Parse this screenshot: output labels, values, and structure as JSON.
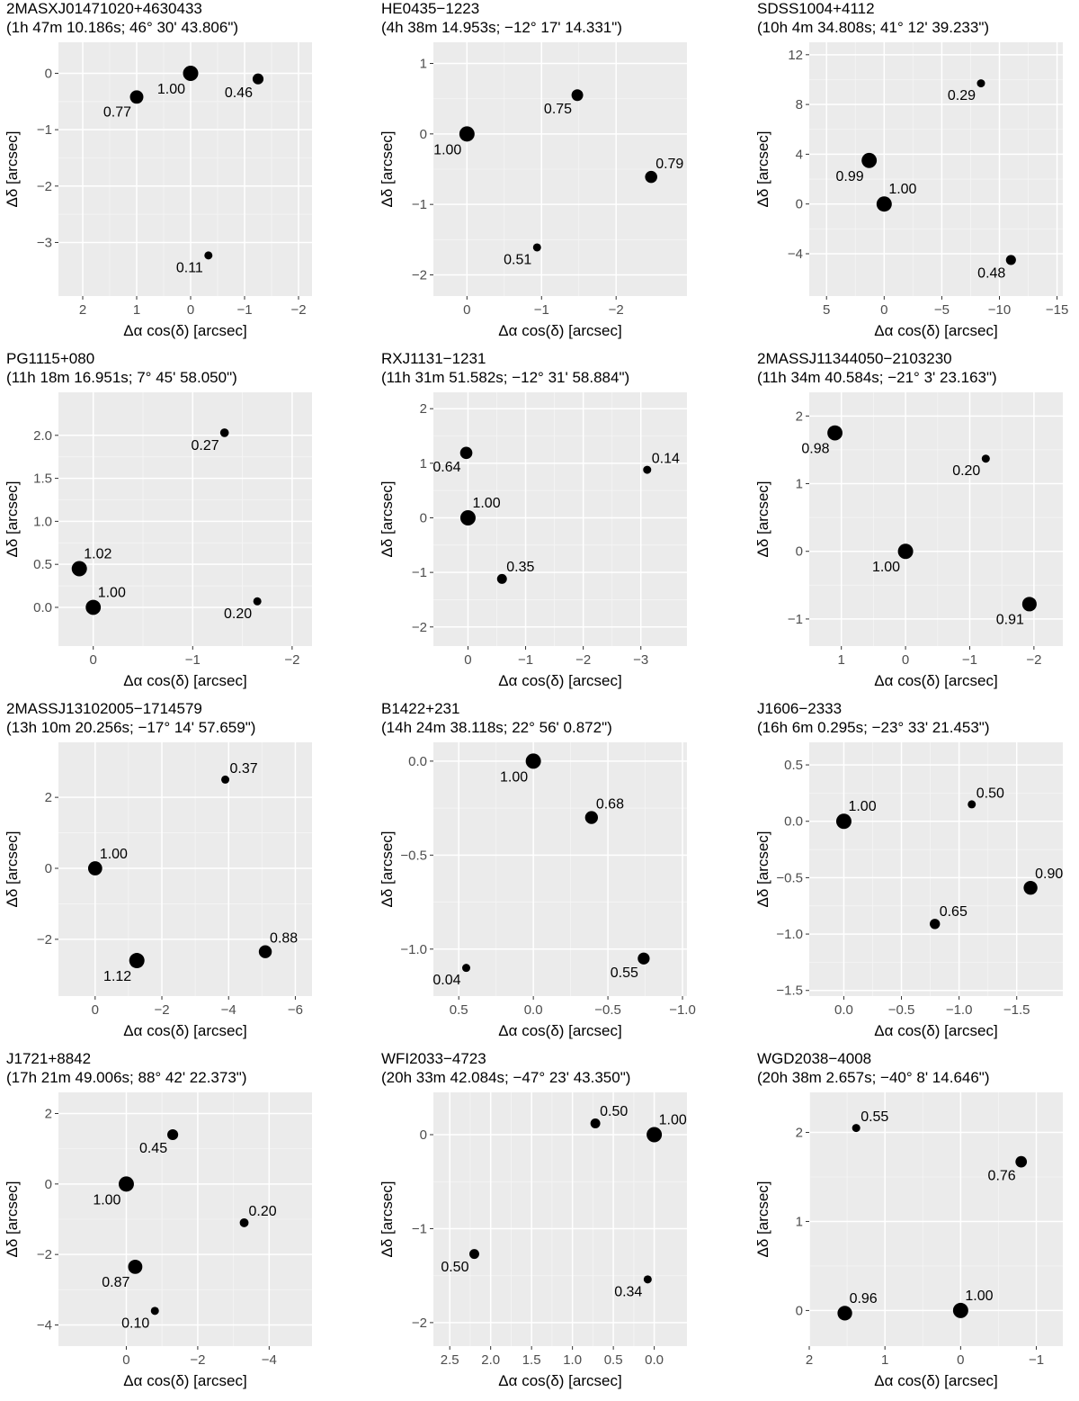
{
  "chart_data": [
    {
      "type": "scatter",
      "name": "2MASXJ01471020+4630433",
      "coords": "(1h 47m 10.186s; 46° 30' 43.806\")",
      "xlabel": "Δα cos(δ) [arcsec]",
      "ylabel": "Δδ [arcsec]",
      "xlim": [
        2.45,
        -2.25
      ],
      "ylim": [
        -3.95,
        0.55
      ],
      "xticks": [
        2,
        1,
        0,
        -1,
        -2
      ],
      "xtick_labels": [
        "2",
        "1",
        "0",
        "−1",
        "−2"
      ],
      "yticks": [
        0,
        -1,
        -2,
        -3
      ],
      "ytick_labels": [
        "0",
        "−1",
        "−2",
        "−3"
      ],
      "points": [
        {
          "x": 0,
          "y": 0,
          "label": "1.00",
          "lpos": "bl"
        },
        {
          "x": 1.0,
          "y": -0.42,
          "label": "0.77",
          "lpos": "bl"
        },
        {
          "x": -1.25,
          "y": -0.1,
          "label": "0.46",
          "lpos": "bl"
        },
        {
          "x": -0.33,
          "y": -3.23,
          "label": "0.11",
          "lpos": "bl"
        }
      ]
    },
    {
      "type": "scatter",
      "name": "HE0435−1223",
      "coords": "(4h 38m 14.953s; −12° 17' 14.331\")",
      "xlabel": "Δα cos(δ) [arcsec]",
      "ylabel": "Δδ [arcsec]",
      "xlim": [
        0.45,
        -2.95
      ],
      "ylim": [
        -2.3,
        1.3
      ],
      "xticks": [
        0,
        -1,
        -2
      ],
      "xtick_labels": [
        "0",
        "−1",
        "−2"
      ],
      "yticks": [
        1,
        0,
        -1,
        -2
      ],
      "ytick_labels": [
        "1",
        "0",
        "−1",
        "−2"
      ],
      "points": [
        {
          "x": 0,
          "y": 0,
          "label": "1.00",
          "lpos": "bl"
        },
        {
          "x": -1.48,
          "y": 0.55,
          "label": "0.75",
          "lpos": "bl"
        },
        {
          "x": -2.47,
          "y": -0.61,
          "label": "0.79",
          "lpos": "tr"
        },
        {
          "x": -0.94,
          "y": -1.61,
          "label": "0.51",
          "lpos": "bl"
        }
      ]
    },
    {
      "type": "scatter",
      "name": "SDSS1004+4112",
      "coords": "(10h 4m 34.808s; 41° 12' 39.233\")",
      "xlabel": "Δα cos(δ) [arcsec]",
      "ylabel": "Δδ [arcsec]",
      "xlim": [
        6.5,
        -15.5
      ],
      "ylim": [
        -7.4,
        13.0
      ],
      "xticks": [
        5,
        0,
        -5,
        -10,
        -15
      ],
      "xtick_labels": [
        "5",
        "0",
        "−5",
        "−10",
        "−15"
      ],
      "yticks": [
        12,
        8,
        4,
        0,
        -4
      ],
      "ytick_labels": [
        "12",
        "8",
        "4",
        "0",
        "−4"
      ],
      "points": [
        {
          "x": 0,
          "y": 0,
          "label": "1.00",
          "lpos": "tr"
        },
        {
          "x": 1.3,
          "y": 3.5,
          "label": "0.99",
          "lpos": "bl"
        },
        {
          "x": -8.4,
          "y": 9.7,
          "label": "0.29",
          "lpos": "bl"
        },
        {
          "x": -11.0,
          "y": -4.5,
          "label": "0.48",
          "lpos": "bl"
        }
      ]
    },
    {
      "type": "scatter",
      "name": "PG1115+080",
      "coords": "(11h 18m 16.951s; 7° 45' 58.050\")",
      "xlabel": "Δα cos(δ) [arcsec]",
      "ylabel": "Δδ [arcsec]",
      "xlim": [
        0.35,
        -2.2
      ],
      "ylim": [
        -0.45,
        2.5
      ],
      "xticks": [
        0,
        -1,
        -2
      ],
      "xtick_labels": [
        "0",
        "−1",
        "−2"
      ],
      "yticks": [
        2.0,
        1.5,
        1.0,
        0.5,
        0.0
      ],
      "ytick_labels": [
        "2.0",
        "1.5",
        "1.0",
        "0.5",
        "0.0"
      ],
      "points": [
        {
          "x": 0,
          "y": 0,
          "label": "1.00",
          "lpos": "tr"
        },
        {
          "x": 0.14,
          "y": 0.45,
          "label": "1.02",
          "lpos": "tr"
        },
        {
          "x": -1.32,
          "y": 2.03,
          "label": "0.27",
          "lpos": "bl"
        },
        {
          "x": -1.65,
          "y": 0.07,
          "label": "0.20",
          "lpos": "bl"
        }
      ]
    },
    {
      "type": "scatter",
      "name": "RXJ1131−1231",
      "coords": "(11h 31m 51.582s; −12° 31' 58.884\")",
      "xlabel": "Δα cos(δ) [arcsec]",
      "ylabel": "Δδ [arcsec]",
      "xlim": [
        0.6,
        -3.8
      ],
      "ylim": [
        -2.35,
        2.3
      ],
      "xticks": [
        0,
        -1,
        -2,
        -3
      ],
      "xtick_labels": [
        "0",
        "−1",
        "−2",
        "−3"
      ],
      "yticks": [
        2,
        1,
        0,
        -1,
        -2
      ],
      "ytick_labels": [
        "2",
        "1",
        "0",
        "−1",
        "−2"
      ],
      "points": [
        {
          "x": 0,
          "y": 0,
          "label": "1.00",
          "lpos": "tr"
        },
        {
          "x": 0.03,
          "y": 1.19,
          "label": "0.64",
          "lpos": "bl"
        },
        {
          "x": -0.59,
          "y": -1.12,
          "label": "0.35",
          "lpos": "tr"
        },
        {
          "x": -3.11,
          "y": 0.88,
          "label": "0.14",
          "lpos": "tr"
        }
      ]
    },
    {
      "type": "scatter",
      "name": "2MASSJ11344050−2103230",
      "coords": "(11h 34m 40.584s; −21° 3' 23.163\")",
      "xlabel": "Δα cos(δ) [arcsec]",
      "ylabel": "Δδ [arcsec]",
      "xlim": [
        1.5,
        -2.45
      ],
      "ylim": [
        -1.4,
        2.35
      ],
      "xticks": [
        1,
        0,
        -1,
        -2
      ],
      "xtick_labels": [
        "1",
        "0",
        "−1",
        "−2"
      ],
      "yticks": [
        2,
        1,
        0,
        -1
      ],
      "ytick_labels": [
        "2",
        "1",
        "0",
        "−1"
      ],
      "points": [
        {
          "x": 0,
          "y": 0,
          "label": "1.00",
          "lpos": "bl"
        },
        {
          "x": 1.1,
          "y": 1.75,
          "label": "0.98",
          "lpos": "bl"
        },
        {
          "x": -1.25,
          "y": 1.37,
          "label": "0.20",
          "lpos": "bl"
        },
        {
          "x": -1.93,
          "y": -0.78,
          "label": "0.91",
          "lpos": "bl"
        }
      ]
    },
    {
      "type": "scatter",
      "name": "2MASSJ13102005−1714579",
      "coords": "(13h 10m 20.256s; −17° 14' 57.659\")",
      "xlabel": "Δα cos(δ) [arcsec]",
      "ylabel": "Δδ [arcsec]",
      "xlim": [
        1.1,
        -6.5
      ],
      "ylim": [
        -3.6,
        3.55
      ],
      "xticks": [
        0,
        -2,
        -4,
        -6
      ],
      "xtick_labels": [
        "0",
        "−2",
        "−4",
        "−6"
      ],
      "yticks": [
        2,
        0,
        -2
      ],
      "ytick_labels": [
        "2",
        "0",
        "−2"
      ],
      "points": [
        {
          "x": 0,
          "y": 0,
          "label": "1.00",
          "lpos": "tr"
        },
        {
          "x": -1.25,
          "y": -2.6,
          "label": "1.12",
          "lpos": "bl"
        },
        {
          "x": -3.9,
          "y": 2.5,
          "label": "0.37",
          "lpos": "tr"
        },
        {
          "x": -5.1,
          "y": -2.35,
          "label": "0.88",
          "lpos": "tr"
        }
      ]
    },
    {
      "type": "scatter",
      "name": "B1422+231",
      "coords": "(14h 24m 38.118s; 22° 56' 0.872\")",
      "xlabel": "Δα cos(δ) [arcsec]",
      "ylabel": "Δδ [arcsec]",
      "xlim": [
        0.67,
        -1.03
      ],
      "ylim": [
        -1.25,
        0.1
      ],
      "xticks": [
        0.5,
        0.0,
        -0.5,
        -1.0
      ],
      "xtick_labels": [
        "0.5",
        "0.0",
        "−0.5",
        "−1.0"
      ],
      "yticks": [
        0.0,
        -0.5,
        -1.0
      ],
      "ytick_labels": [
        "0.0",
        "−0.5",
        "−1.0"
      ],
      "points": [
        {
          "x": 0,
          "y": 0,
          "label": "1.00",
          "lpos": "bl"
        },
        {
          "x": -0.39,
          "y": -0.3,
          "label": "0.68",
          "lpos": "tr"
        },
        {
          "x": 0.45,
          "y": -1.1,
          "label": "0.04",
          "lpos": "bl"
        },
        {
          "x": -0.74,
          "y": -1.05,
          "label": "0.55",
          "lpos": "bl"
        }
      ]
    },
    {
      "type": "scatter",
      "name": "J1606−2333",
      "coords": "(16h 6m 0.295s; −23° 33' 21.453\")",
      "xlabel": "Δα cos(δ) [arcsec]",
      "ylabel": "Δδ [arcsec]",
      "xlim": [
        0.3,
        -1.9
      ],
      "ylim": [
        -1.55,
        0.7
      ],
      "xticks": [
        0.0,
        -0.5,
        -1.0,
        -1.5
      ],
      "xtick_labels": [
        "0.0",
        "−0.5",
        "−1.0",
        "−1.5"
      ],
      "yticks": [
        0.5,
        0.0,
        -0.5,
        -1.0,
        -1.5
      ],
      "ytick_labels": [
        "0.5",
        "0.0",
        "−0.5",
        "−1.0",
        "−1.5"
      ],
      "points": [
        {
          "x": 0,
          "y": 0,
          "label": "1.00",
          "lpos": "tr"
        },
        {
          "x": -1.11,
          "y": 0.15,
          "label": "0.50",
          "lpos": "tr"
        },
        {
          "x": -1.62,
          "y": -0.59,
          "label": "0.90",
          "lpos": "tr"
        },
        {
          "x": -0.79,
          "y": -0.91,
          "label": "0.65",
          "lpos": "tr"
        }
      ]
    },
    {
      "type": "scatter",
      "name": "J1721+8842",
      "coords": "(17h 21m 49.006s; 88° 42' 22.373\")",
      "xlabel": "Δα cos(δ) [arcsec]",
      "ylabel": "Δδ [arcsec]",
      "xlim": [
        1.9,
        -5.2
      ],
      "ylim": [
        -4.6,
        2.6
      ],
      "xticks": [
        0,
        -2,
        -4
      ],
      "xtick_labels": [
        "0",
        "−2",
        "−4"
      ],
      "yticks": [
        2,
        0,
        -2,
        -4
      ],
      "ytick_labels": [
        "2",
        "0",
        "−2",
        "−4"
      ],
      "points": [
        {
          "x": 0,
          "y": 0,
          "label": "1.00",
          "lpos": "bl"
        },
        {
          "x": -1.3,
          "y": 1.4,
          "label": "0.45",
          "lpos": "bl"
        },
        {
          "x": -3.3,
          "y": -1.1,
          "label": "0.20",
          "lpos": "tr"
        },
        {
          "x": -0.25,
          "y": -2.35,
          "label": "0.87",
          "lpos": "bl"
        },
        {
          "x": -0.8,
          "y": -3.6,
          "label": "0.10",
          "lpos": "bl"
        }
      ]
    },
    {
      "type": "scatter",
      "name": "WFI2033−4723",
      "coords": "(20h 33m 42.084s; −47° 23' 43.350\")",
      "xlabel": "Δα cos(δ) [arcsec]",
      "ylabel": "Δδ [arcsec]",
      "xlim": [
        2.7,
        -0.4
      ],
      "ylim": [
        -2.25,
        0.45
      ],
      "xticks": [
        2.5,
        2.0,
        1.5,
        1.0,
        0.5,
        0.0
      ],
      "xtick_labels": [
        "2.5",
        "2.0",
        "1.5",
        "1.0",
        "0.5",
        "0.0"
      ],
      "yticks": [
        0,
        -1,
        -2
      ],
      "ytick_labels": [
        "0",
        "−1",
        "−2"
      ],
      "points": [
        {
          "x": 0,
          "y": 0,
          "label": "1.00",
          "lpos": "tr"
        },
        {
          "x": 0.72,
          "y": 0.12,
          "label": "0.50",
          "lpos": "tr"
        },
        {
          "x": 2.2,
          "y": -1.27,
          "label": "0.50",
          "lpos": "bl"
        },
        {
          "x": 0.08,
          "y": -1.54,
          "label": "0.34",
          "lpos": "bl"
        }
      ]
    },
    {
      "type": "scatter",
      "name": "WGD2038−4008",
      "coords": "(20h 38m 2.657s; −40° 8' 14.646\")",
      "xlabel": "Δα cos(δ) [arcsec]",
      "ylabel": "Δδ [arcsec]",
      "xlim": [
        2.0,
        -1.35
      ],
      "ylim": [
        -0.4,
        2.45
      ],
      "xticks": [
        2,
        1,
        0,
        -1
      ],
      "xtick_labels": [
        "2",
        "1",
        "0",
        "−1"
      ],
      "yticks": [
        2,
        1,
        0
      ],
      "ytick_labels": [
        "2",
        "1",
        "0"
      ],
      "points": [
        {
          "x": 0,
          "y": 0,
          "label": "1.00",
          "lpos": "tr"
        },
        {
          "x": 1.53,
          "y": -0.03,
          "label": "0.96",
          "lpos": "tr"
        },
        {
          "x": 1.38,
          "y": 2.05,
          "label": "0.55",
          "lpos": "tr"
        },
        {
          "x": -0.8,
          "y": 1.67,
          "label": "0.76",
          "lpos": "bl"
        }
      ]
    }
  ]
}
